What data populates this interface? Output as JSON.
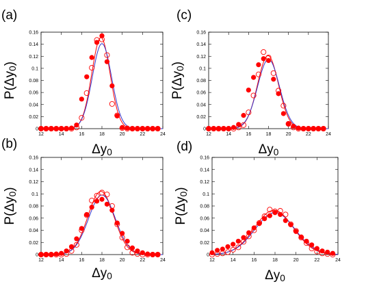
{
  "chart_data": [
    {
      "panel": "(a)",
      "type": "scatter",
      "xlabel": "Δy0",
      "ylabel": "P(Δy0)",
      "xlim": [
        12,
        24
      ],
      "ylim": [
        0,
        0.16
      ],
      "xticks": [
        "12",
        "14",
        "16",
        "18",
        "20",
        "22",
        "24"
      ],
      "yticks": [
        "0",
        "0.02",
        "0.04",
        "0.06",
        "0.08",
        "0.1",
        "0.12",
        "0.14",
        "0.16"
      ],
      "grid": false,
      "series": [
        {
          "style": "filled-circle",
          "color": "#ff0000",
          "x": [
            12,
            12.5,
            13,
            13.5,
            14,
            14.5,
            15,
            15.5,
            16,
            16.5,
            17,
            17.5,
            18,
            18.5,
            19,
            19.5,
            20,
            20.5,
            21,
            21.5,
            22,
            22.5,
            23,
            23.5
          ],
          "y": [
            0,
            0,
            0,
            0,
            0,
            0,
            0.001,
            0.006,
            0.049,
            0.086,
            0.118,
            0.143,
            0.154,
            0.111,
            0.071,
            0.021,
            0.002,
            0.001,
            0,
            0,
            0,
            0,
            0,
            0
          ]
        },
        {
          "style": "open-circle",
          "color": "#ff0000",
          "x": [
            12,
            12.5,
            13,
            13.5,
            14,
            14.5,
            15,
            15.5,
            16,
            16.5,
            17,
            17.5,
            18,
            18.5,
            19,
            19.5,
            20,
            20.5,
            21,
            21.5,
            22,
            22.5,
            23,
            23.5
          ],
          "y": [
            0,
            0,
            0,
            0,
            0,
            0,
            0,
            0.002,
            0.018,
            0.059,
            0.101,
            0.147,
            0.148,
            0.122,
            0.041,
            0.022,
            0.001,
            0,
            0,
            0,
            0,
            0,
            0,
            0
          ]
        },
        {
          "style": "line",
          "color": "#ff0000",
          "curve": "gaussian",
          "mean": 17.9,
          "sd": 0.9,
          "peak": 0.151
        },
        {
          "style": "line",
          "color": "#3333cc",
          "curve": "gaussian",
          "mean": 18.0,
          "sd": 0.95,
          "peak": 0.141
        }
      ]
    },
    {
      "panel": "(b)",
      "type": "scatter",
      "xlabel": "Δy0",
      "ylabel": "P(Δy0)",
      "xlim": [
        12,
        24
      ],
      "ylim": [
        0,
        0.16
      ],
      "xticks": [
        "12",
        "14",
        "16",
        "18",
        "20",
        "22",
        "24"
      ],
      "yticks": [
        "0",
        "0.02",
        "0.04",
        "0.06",
        "0.08",
        "0.1",
        "0.12",
        "0.14",
        "0.16"
      ],
      "grid": false,
      "series": [
        {
          "style": "filled-circle",
          "color": "#ff0000",
          "x": [
            12,
            12.5,
            13,
            13.5,
            14,
            14.5,
            15,
            15.5,
            16,
            16.5,
            17,
            17.5,
            18,
            18.5,
            19,
            19.5,
            20,
            20.5,
            21,
            21.5,
            22,
            22.5,
            23,
            23.5
          ],
          "y": [
            0,
            0,
            0,
            0.001,
            0.002,
            0.006,
            0.013,
            0.026,
            0.043,
            0.066,
            0.078,
            0.088,
            0.091,
            0.083,
            0.073,
            0.052,
            0.035,
            0.022,
            0.011,
            0.006,
            0.003,
            0.001,
            0,
            0
          ]
        },
        {
          "style": "open-circle",
          "color": "#ff0000",
          "x": [
            12,
            12.5,
            13,
            13.5,
            14,
            14.5,
            15,
            15.5,
            16,
            16.5,
            17,
            17.5,
            18,
            18.5,
            19,
            19.5,
            20,
            20.5,
            21,
            21.5,
            22,
            22.5,
            23,
            23.5
          ],
          "y": [
            0,
            0,
            0,
            0,
            0,
            0.001,
            0.006,
            0.016,
            0.04,
            0.065,
            0.089,
            0.097,
            0.102,
            0.099,
            0.08,
            0.05,
            0.028,
            0.012,
            0.003,
            0.001,
            0,
            0,
            0,
            0
          ]
        },
        {
          "style": "line",
          "color": "#ff0000",
          "curve": "gaussian",
          "mean": 17.9,
          "sd": 1.28,
          "peak": 0.104
        },
        {
          "style": "line",
          "color": "#3333cc",
          "curve": "gaussian",
          "mean": 18.0,
          "sd": 1.32,
          "peak": 0.098
        }
      ]
    },
    {
      "panel": "(c)",
      "type": "scatter",
      "xlabel": "Δy0",
      "ylabel": "P(Δy0)",
      "xlim": [
        12,
        24
      ],
      "ylim": [
        0,
        0.16
      ],
      "xticks": [
        "12",
        "14",
        "16",
        "18",
        "20",
        "22",
        "24"
      ],
      "yticks": [
        "0",
        "0.02",
        "0.04",
        "0.06",
        "0.08",
        "0.1",
        "0.12",
        "0.14",
        "0.16"
      ],
      "grid": false,
      "series": [
        {
          "style": "filled-circle",
          "color": "#ff0000",
          "x": [
            12,
            12.5,
            13,
            13.5,
            14,
            14.5,
            15,
            15.5,
            16,
            16.5,
            17,
            17.5,
            18,
            18.5,
            19,
            19.5,
            20,
            20.5,
            21,
            21.5,
            22,
            22.5,
            23,
            23.5
          ],
          "y": [
            0,
            0,
            0,
            0,
            0,
            0.002,
            0.007,
            0.022,
            0.064,
            0.085,
            0.106,
            0.116,
            0.113,
            0.082,
            0.058,
            0.025,
            0.008,
            0.004,
            0.001,
            0,
            0,
            0,
            0,
            0
          ]
        },
        {
          "style": "open-circle",
          "color": "#ff0000",
          "x": [
            12,
            12.5,
            13,
            13.5,
            14,
            14.5,
            15,
            15.5,
            16,
            16.5,
            17,
            17.5,
            18,
            18.5,
            19,
            19.5,
            20,
            20.5,
            21,
            21.5,
            22,
            22.5,
            23,
            23.5
          ],
          "y": [
            0,
            0,
            0,
            0,
            0,
            0,
            0.002,
            0.006,
            0.027,
            0.055,
            0.09,
            0.127,
            0.118,
            0.092,
            0.063,
            0.038,
            0.008,
            0.002,
            0,
            0,
            0,
            0,
            0,
            0
          ]
        },
        {
          "style": "line",
          "color": "#ff0000",
          "curve": "gaussian",
          "mean": 17.95,
          "sd": 1.05,
          "peak": 0.121
        },
        {
          "style": "line",
          "color": "#3333cc",
          "curve": "gaussian",
          "mean": 18.0,
          "sd": 1.1,
          "peak": 0.115
        }
      ]
    },
    {
      "panel": "(d)",
      "type": "scatter",
      "xlabel": "Δy0",
      "ylabel": "P(Δy0)",
      "xlim": [
        12,
        24
      ],
      "ylim": [
        0,
        0.16
      ],
      "xticks": [
        "12",
        "14",
        "16",
        "18",
        "20",
        "22",
        "24"
      ],
      "yticks": [
        "0",
        "0.02",
        "0.04",
        "0.06",
        "0.08",
        "0.1",
        "0.12",
        "0.14",
        "0.16"
      ],
      "grid": false,
      "series": [
        {
          "style": "filled-circle",
          "color": "#ff0000",
          "x": [
            12,
            12.5,
            13,
            13.5,
            14,
            14.5,
            15,
            15.5,
            16,
            16.5,
            17,
            17.5,
            18,
            18.5,
            19,
            19.5,
            20,
            20.5,
            21,
            21.5,
            22,
            22.5,
            23,
            23.5
          ],
          "y": [
            0.003,
            0.007,
            0.009,
            0.013,
            0.017,
            0.022,
            0.028,
            0.036,
            0.044,
            0.051,
            0.059,
            0.064,
            0.069,
            0.066,
            0.056,
            0.049,
            0.038,
            0.029,
            0.022,
            0.016,
            0.01,
            0.006,
            0.004,
            0.002
          ]
        },
        {
          "style": "open-circle",
          "color": "#ff0000",
          "x": [
            12,
            12.5,
            13,
            13.5,
            14,
            14.5,
            15,
            15.5,
            16,
            16.5,
            17,
            17.5,
            18,
            18.5,
            19,
            19.5,
            20,
            20.5,
            21,
            21.5,
            22,
            22.5,
            23,
            23.5
          ],
          "y": [
            0,
            0.001,
            0.002,
            0.004,
            0.008,
            0.012,
            0.021,
            0.03,
            0.04,
            0.052,
            0.063,
            0.074,
            0.071,
            0.072,
            0.066,
            0.05,
            0.039,
            0.028,
            0.019,
            0.01,
            0.005,
            0.002,
            0.001,
            0
          ]
        },
        {
          "style": "line",
          "color": "#ff0000",
          "curve": "gaussian",
          "mean": 17.9,
          "sd": 1.85,
          "peak": 0.073
        },
        {
          "style": "line",
          "color": "#3333cc",
          "curve": "gaussian",
          "mean": 18.0,
          "sd": 1.9,
          "peak": 0.069
        }
      ]
    }
  ]
}
